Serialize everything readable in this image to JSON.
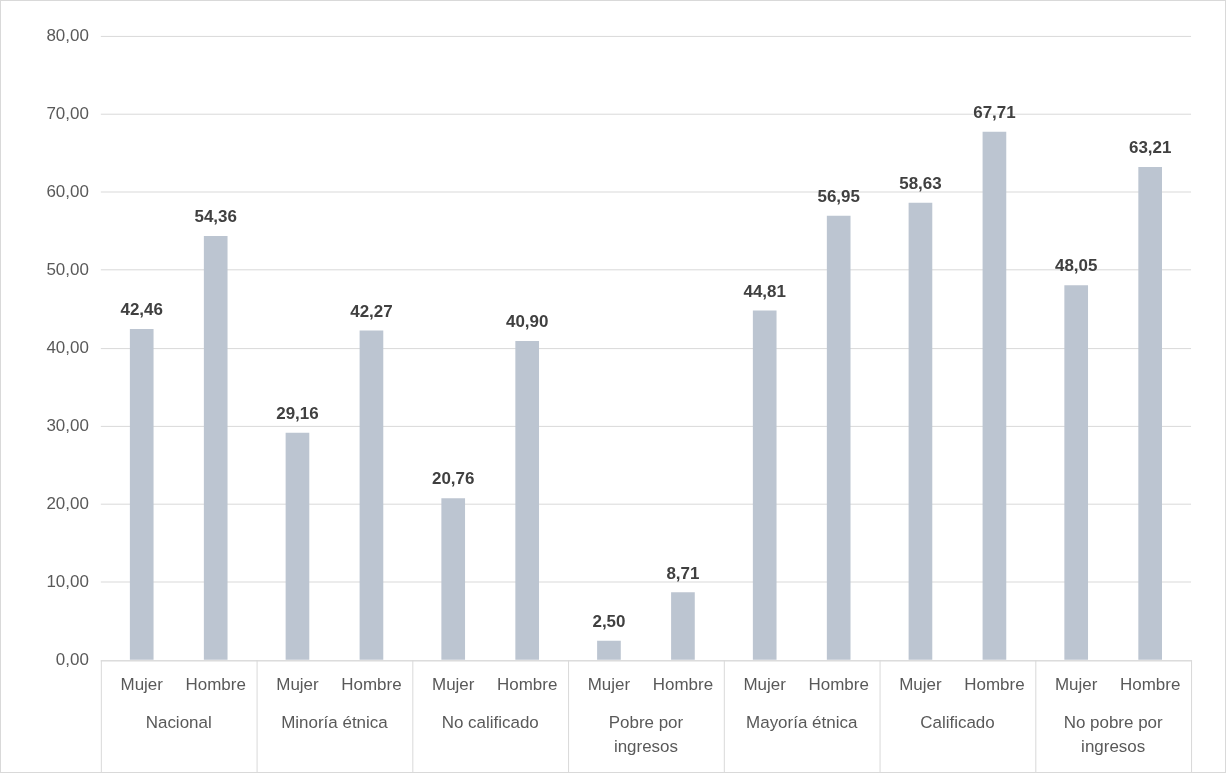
{
  "chart_data": {
    "type": "bar",
    "categories": [
      "Nacional",
      "Minoría étnica",
      "No calificado",
      "Pobre por ingresos",
      "Mayoría étnica",
      "Calificado",
      "No pobre por ingresos"
    ],
    "series": [
      {
        "name": "Mujer",
        "color": "#bcc5d1",
        "values": [
          42.46,
          29.16,
          20.76,
          2.5,
          44.81,
          58.63,
          48.05
        ],
        "value_labels": [
          "42,46",
          "29,16",
          "20,76",
          "2,50",
          "44,81",
          "58,63",
          "48,05"
        ]
      },
      {
        "name": "Hombre",
        "color": "#bcc5d1",
        "values": [
          54.36,
          42.27,
          40.9,
          8.71,
          56.95,
          67.71,
          63.21
        ],
        "value_labels": [
          "54,36",
          "42,27",
          "40,90",
          "8,71",
          "56,95",
          "67,71",
          "63,21"
        ]
      }
    ],
    "ylim": [
      0,
      80
    ],
    "yticks": [
      {
        "value": 0,
        "label": "0,00"
      },
      {
        "value": 10,
        "label": "10,00"
      },
      {
        "value": 20,
        "label": "20,00"
      },
      {
        "value": 30,
        "label": "30,00"
      },
      {
        "value": 40,
        "label": "40,00"
      },
      {
        "value": 50,
        "label": "50,00"
      },
      {
        "value": 60,
        "label": "60,00"
      },
      {
        "value": 70,
        "label": "70,00"
      },
      {
        "value": 80,
        "label": "80,00"
      }
    ],
    "grid": "y",
    "legend": false
  }
}
